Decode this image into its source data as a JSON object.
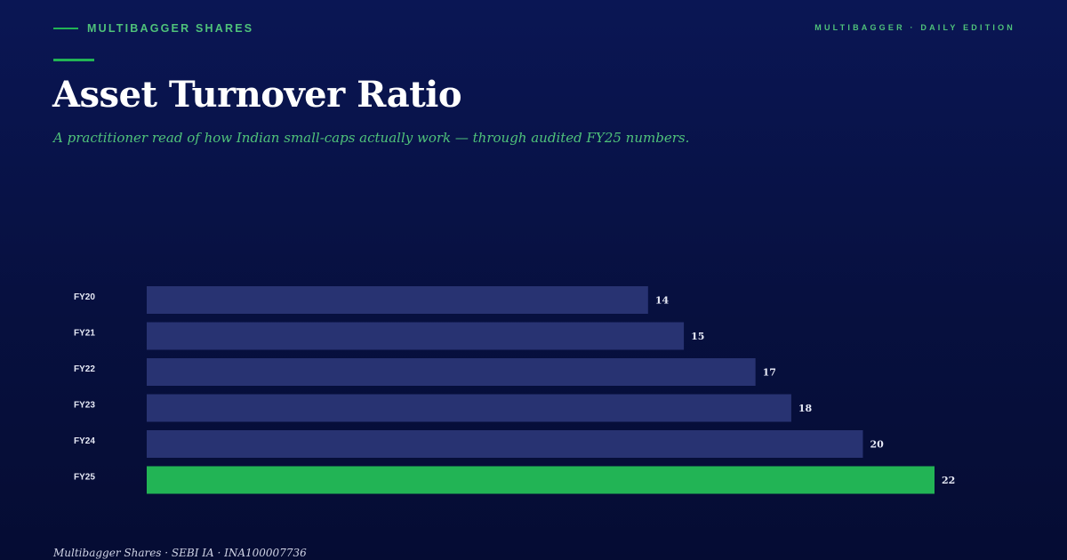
{
  "header": {
    "brand": "MULTIBAGGER SHARES",
    "edition": "MULTIBAGGER · DAILY EDITION"
  },
  "title": "Asset Turnover Ratio",
  "subtitle": "A practitioner read of how Indian small-caps actually work — through audited FY25 numbers.",
  "footer": "Multibagger Shares · SEBI IA · INA100007736",
  "colors": {
    "bar": "#283372",
    "highlight": "#22b455",
    "accent": "#4fc27a"
  },
  "chart_data": {
    "type": "bar",
    "orientation": "horizontal",
    "categories": [
      "FY20",
      "FY21",
      "FY22",
      "FY23",
      "FY24",
      "FY25"
    ],
    "values": [
      14,
      15,
      17,
      18,
      20,
      22
    ],
    "highlight_category": "FY25",
    "xlim": [
      0,
      22
    ],
    "grid": false,
    "legend": "none"
  }
}
